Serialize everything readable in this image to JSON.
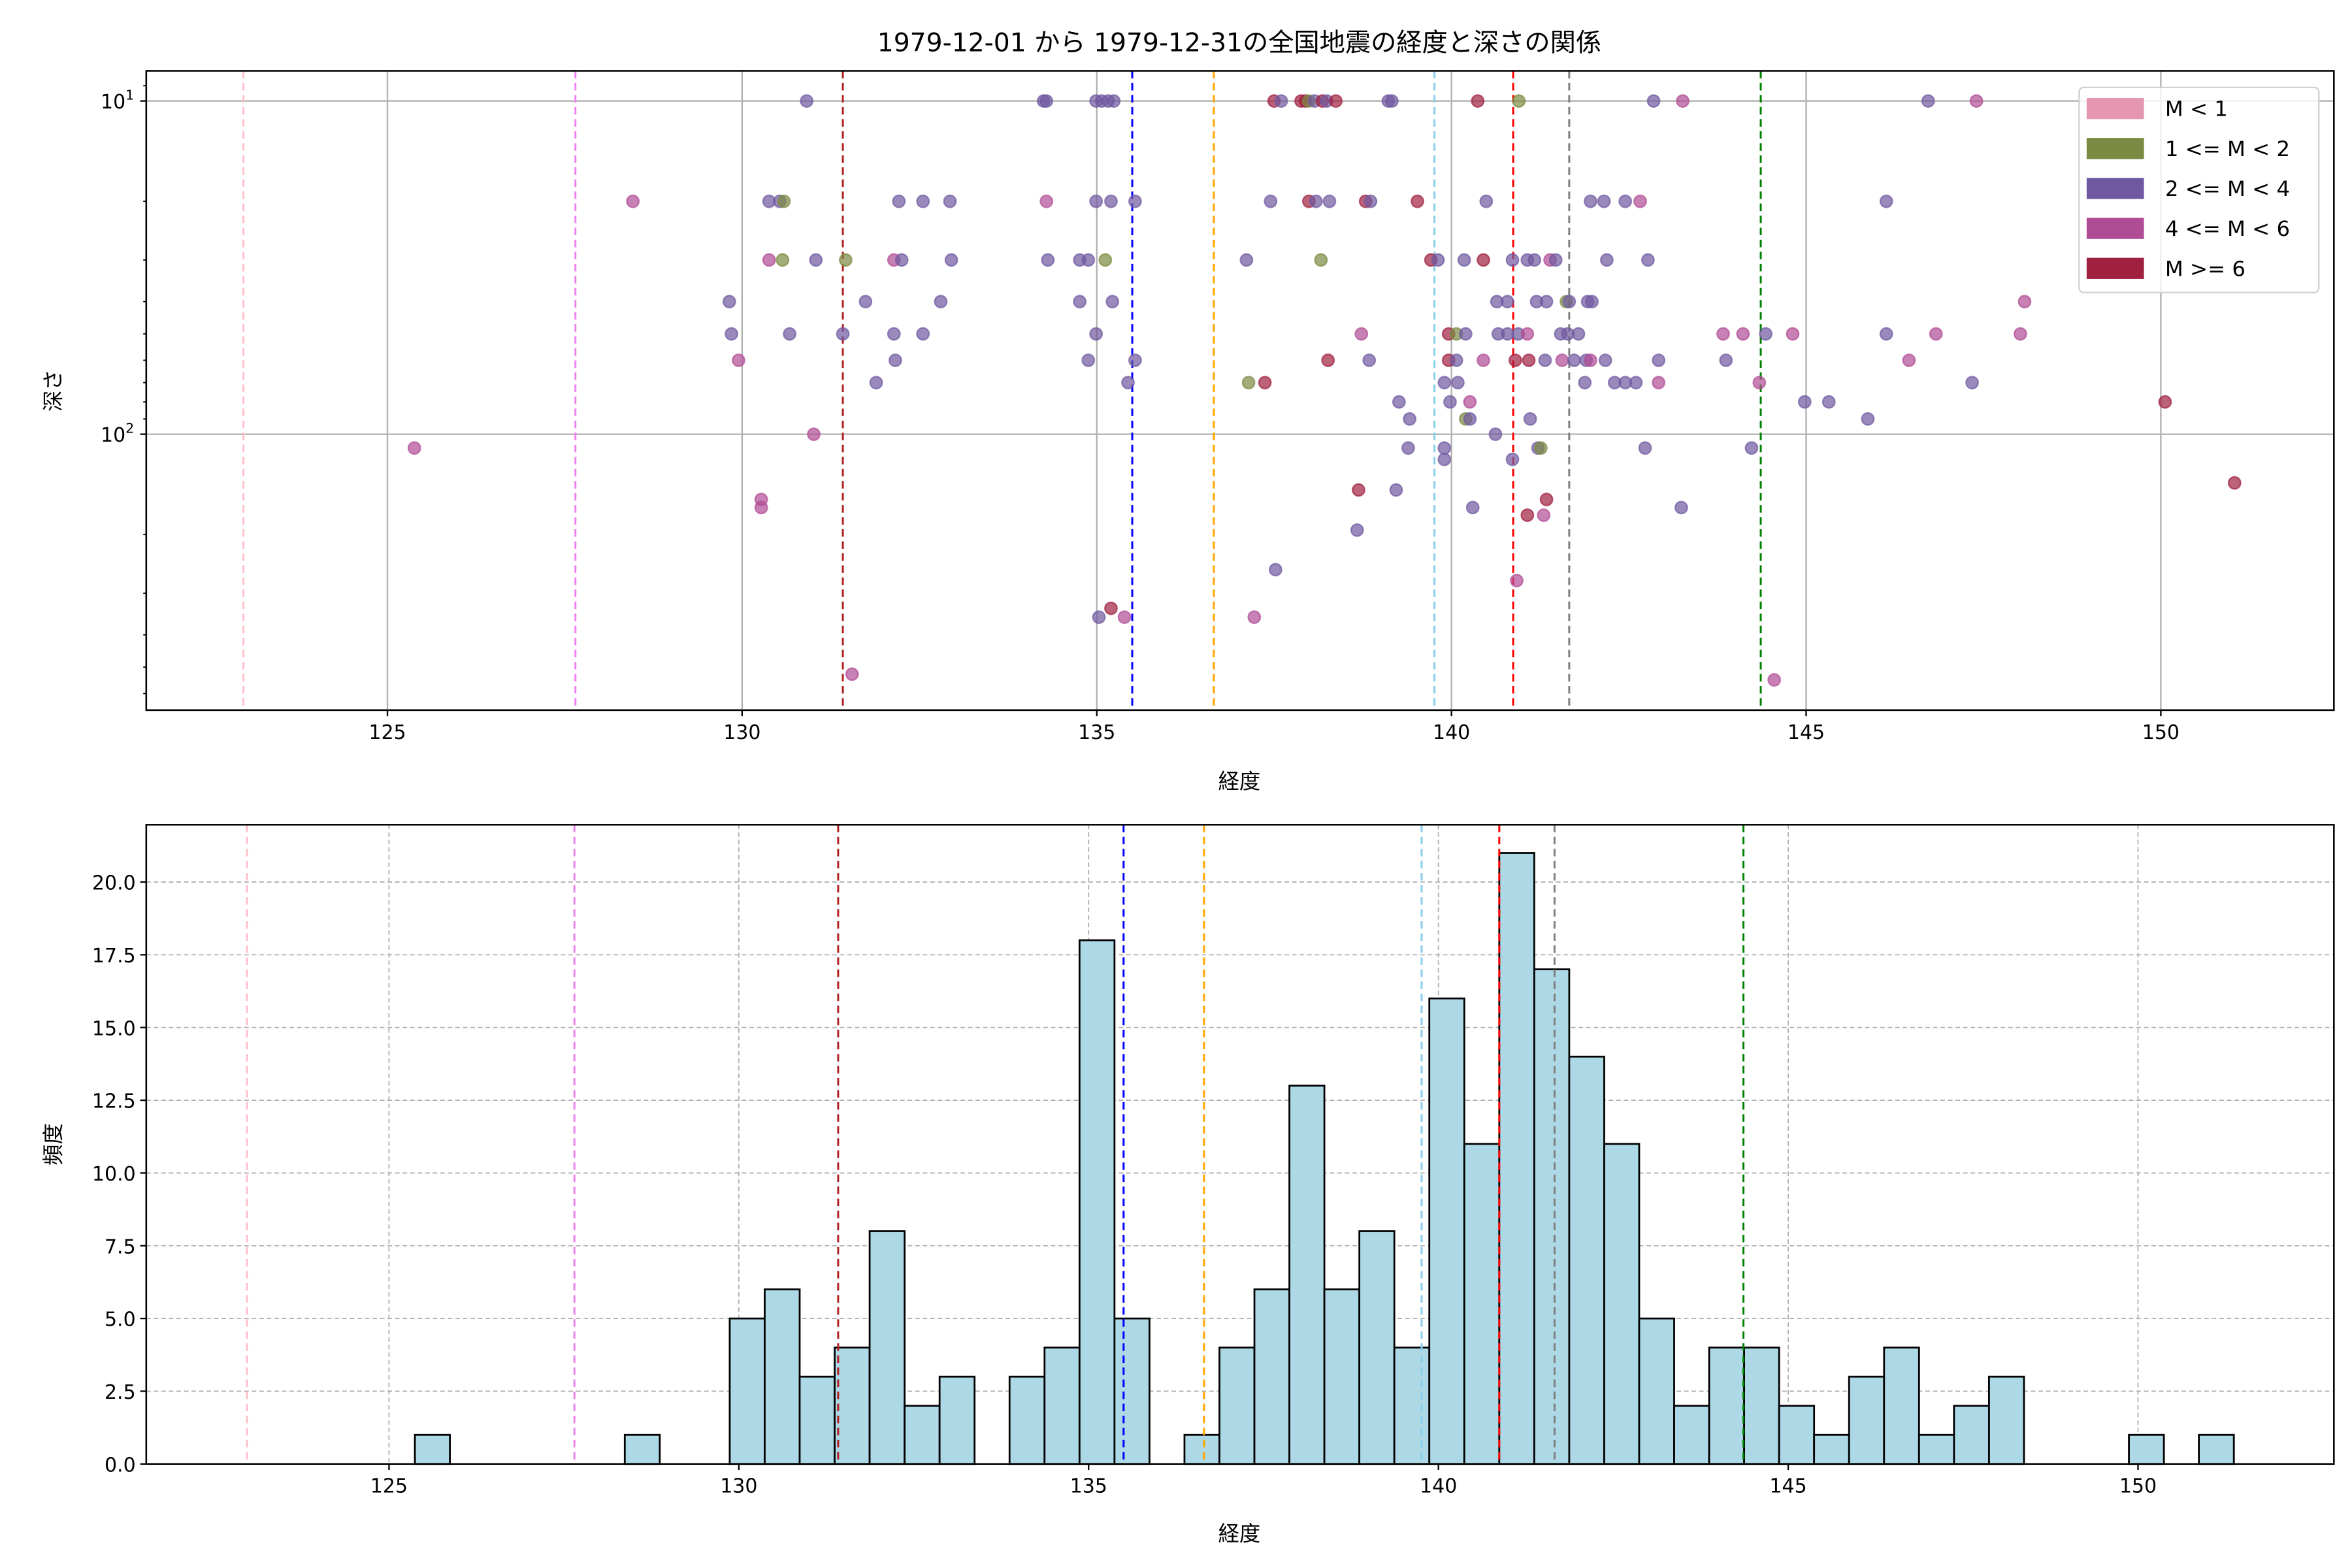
{
  "title": "1979-12-01 から 1979-12-31の全国地震の経度と深さの関係",
  "chart_data": [
    {
      "type": "scatter",
      "xlabel": "経度",
      "ylabel": "深さ",
      "xlim": [
        121.6,
        152.44
      ],
      "ylim": [
        673,
        8.12
      ],
      "yscale": "log",
      "y_inverted": true,
      "xticks": [
        125,
        130,
        135,
        140,
        145,
        150
      ],
      "yticks": [
        {
          "value": 10,
          "base": "10",
          "exp": "1"
        },
        {
          "value": 100,
          "base": "10",
          "exp": "2"
        }
      ],
      "grid": true,
      "legend_placement": "top-right",
      "legend": [
        {
          "label": "M < 1",
          "color": "#e597b1"
        },
        {
          "label": "1 <= M < 2",
          "color": "#7a8a42"
        },
        {
          "label": "2 <= M < 4",
          "color": "#6f58a0"
        },
        {
          "label": "4 <= M < 6",
          "color": "#b04c94"
        },
        {
          "label": "M >= 6",
          "color": "#a02040"
        }
      ],
      "point_fields": [
        "longitude",
        "depth",
        "class_index"
      ],
      "points": [
        [
          130.91,
          10,
          2
        ],
        [
          134.25,
          10,
          2
        ],
        [
          134.29,
          10,
          2
        ],
        [
          134.99,
          10,
          2
        ],
        [
          135.07,
          10,
          2
        ],
        [
          135.16,
          10,
          2
        ],
        [
          135.24,
          10,
          2
        ],
        [
          137.5,
          10,
          4
        ],
        [
          137.6,
          10,
          2
        ],
        [
          137.88,
          10,
          4
        ],
        [
          137.94,
          10,
          4
        ],
        [
          137.99,
          10,
          1
        ],
        [
          138.07,
          10,
          2
        ],
        [
          138.18,
          10,
          4
        ],
        [
          138.24,
          10,
          2
        ],
        [
          138.37,
          10,
          4
        ],
        [
          139.11,
          10,
          2
        ],
        [
          139.16,
          10,
          2
        ],
        [
          140.37,
          10,
          4
        ],
        [
          140.95,
          10,
          1
        ],
        [
          142.85,
          10,
          2
        ],
        [
          143.26,
          10,
          3
        ],
        [
          146.72,
          10,
          2
        ],
        [
          147.4,
          10,
          3
        ],
        [
          128.46,
          20,
          3
        ],
        [
          130.38,
          20,
          2
        ],
        [
          130.53,
          20,
          2
        ],
        [
          130.59,
          20,
          1
        ],
        [
          132.21,
          20,
          2
        ],
        [
          132.55,
          20,
          2
        ],
        [
          132.93,
          20,
          2
        ],
        [
          134.29,
          20,
          3
        ],
        [
          134.99,
          20,
          2
        ],
        [
          135.2,
          20,
          2
        ],
        [
          135.54,
          20,
          2
        ],
        [
          137.45,
          20,
          2
        ],
        [
          137.99,
          20,
          4
        ],
        [
          138.09,
          20,
          2
        ],
        [
          138.28,
          20,
          2
        ],
        [
          138.79,
          20,
          4
        ],
        [
          138.86,
          20,
          2
        ],
        [
          139.52,
          20,
          4
        ],
        [
          140.49,
          20,
          2
        ],
        [
          141.96,
          20,
          2
        ],
        [
          142.15,
          20,
          2
        ],
        [
          142.45,
          20,
          2
        ],
        [
          142.66,
          20,
          3
        ],
        [
          146.13,
          20,
          2
        ],
        [
          130.38,
          30,
          3
        ],
        [
          130.57,
          30,
          1
        ],
        [
          131.04,
          30,
          2
        ],
        [
          131.46,
          30,
          1
        ],
        [
          132.14,
          30,
          3
        ],
        [
          132.25,
          30,
          2
        ],
        [
          132.95,
          30,
          2
        ],
        [
          134.31,
          30,
          2
        ],
        [
          134.76,
          30,
          2
        ],
        [
          134.88,
          30,
          2
        ],
        [
          135.12,
          30,
          1
        ],
        [
          137.11,
          30,
          2
        ],
        [
          138.16,
          30,
          1
        ],
        [
          139.71,
          30,
          4
        ],
        [
          139.81,
          30,
          2
        ],
        [
          140.18,
          30,
          2
        ],
        [
          140.45,
          30,
          4
        ],
        [
          140.86,
          30,
          2
        ],
        [
          141.07,
          30,
          2
        ],
        [
          141.17,
          30,
          2
        ],
        [
          141.39,
          30,
          3
        ],
        [
          141.47,
          30,
          2
        ],
        [
          142.19,
          30,
          2
        ],
        [
          142.77,
          30,
          2
        ],
        [
          129.82,
          40,
          2
        ],
        [
          131.74,
          40,
          2
        ],
        [
          132.8,
          40,
          2
        ],
        [
          134.76,
          40,
          2
        ],
        [
          135.22,
          40,
          2
        ],
        [
          140.64,
          40,
          2
        ],
        [
          140.79,
          40,
          2
        ],
        [
          141.2,
          40,
          2
        ],
        [
          141.34,
          40,
          2
        ],
        [
          141.62,
          40,
          1
        ],
        [
          141.66,
          40,
          2
        ],
        [
          141.92,
          40,
          2
        ],
        [
          141.98,
          40,
          2
        ],
        [
          148.08,
          40,
          3
        ],
        [
          129.85,
          50,
          2
        ],
        [
          130.67,
          50,
          2
        ],
        [
          131.42,
          50,
          2
        ],
        [
          132.14,
          50,
          2
        ],
        [
          132.55,
          50,
          2
        ],
        [
          134.99,
          50,
          2
        ],
        [
          138.73,
          50,
          3
        ],
        [
          139.96,
          50,
          4
        ],
        [
          140.07,
          50,
          1
        ],
        [
          140.2,
          50,
          2
        ],
        [
          140.66,
          50,
          2
        ],
        [
          140.79,
          50,
          2
        ],
        [
          140.94,
          50,
          2
        ],
        [
          141.07,
          50,
          3
        ],
        [
          141.54,
          50,
          2
        ],
        [
          141.64,
          50,
          2
        ],
        [
          141.79,
          50,
          2
        ],
        [
          143.83,
          50,
          3
        ],
        [
          144.11,
          50,
          3
        ],
        [
          144.43,
          50,
          2
        ],
        [
          144.81,
          50,
          3
        ],
        [
          146.13,
          50,
          2
        ],
        [
          146.83,
          50,
          3
        ],
        [
          148.02,
          50,
          3
        ],
        [
          129.95,
          60,
          3
        ],
        [
          132.16,
          60,
          2
        ],
        [
          134.88,
          60,
          2
        ],
        [
          135.54,
          60,
          2
        ],
        [
          138.26,
          60,
          4
        ],
        [
          138.84,
          60,
          2
        ],
        [
          139.96,
          60,
          4
        ],
        [
          140.07,
          60,
          2
        ],
        [
          140.45,
          60,
          3
        ],
        [
          140.9,
          60,
          4
        ],
        [
          141.09,
          60,
          4
        ],
        [
          141.32,
          60,
          2
        ],
        [
          141.56,
          60,
          3
        ],
        [
          141.73,
          60,
          2
        ],
        [
          141.9,
          60,
          2
        ],
        [
          141.96,
          60,
          3
        ],
        [
          142.17,
          60,
          2
        ],
        [
          142.92,
          60,
          2
        ],
        [
          143.87,
          60,
          2
        ],
        [
          146.45,
          60,
          3
        ],
        [
          131.89,
          70,
          2
        ],
        [
          135.44,
          70,
          2
        ],
        [
          137.14,
          70,
          1
        ],
        [
          137.37,
          70,
          4
        ],
        [
          139.9,
          70,
          2
        ],
        [
          140.09,
          70,
          2
        ],
        [
          141.88,
          70,
          2
        ],
        [
          142.3,
          70,
          2
        ],
        [
          142.45,
          70,
          2
        ],
        [
          142.6,
          70,
          2
        ],
        [
          142.92,
          70,
          3
        ],
        [
          144.34,
          70,
          3
        ],
        [
          147.34,
          70,
          2
        ],
        [
          139.26,
          80,
          2
        ],
        [
          139.98,
          80,
          2
        ],
        [
          140.26,
          80,
          3
        ],
        [
          144.98,
          80,
          2
        ],
        [
          145.32,
          80,
          2
        ],
        [
          150.06,
          80,
          4
        ],
        [
          139.41,
          90,
          2
        ],
        [
          140.2,
          90,
          1
        ],
        [
          140.26,
          90,
          2
        ],
        [
          141.11,
          90,
          2
        ],
        [
          145.87,
          90,
          2
        ],
        [
          131.01,
          100,
          3
        ],
        [
          140.62,
          100,
          2
        ],
        [
          125.38,
          110,
          3
        ],
        [
          139.39,
          110,
          2
        ],
        [
          139.9,
          110,
          2
        ],
        [
          141.22,
          110,
          2
        ],
        [
          141.26,
          110,
          1
        ],
        [
          142.73,
          110,
          2
        ],
        [
          144.23,
          110,
          2
        ],
        [
          139.9,
          119,
          2
        ],
        [
          140.86,
          119,
          2
        ],
        [
          138.69,
          147,
          4
        ],
        [
          139.22,
          147,
          2
        ],
        [
          151.04,
          140,
          4
        ],
        [
          130.27,
          157,
          3
        ],
        [
          141.34,
          157,
          4
        ],
        [
          130.27,
          166,
          3
        ],
        [
          140.3,
          166,
          2
        ],
        [
          143.24,
          166,
          2
        ],
        [
          141.07,
          175,
          4
        ],
        [
          141.3,
          175,
          3
        ],
        [
          138.67,
          194,
          2
        ],
        [
          137.52,
          255,
          2
        ],
        [
          140.92,
          275,
          3
        ],
        [
          135.2,
          333,
          4
        ],
        [
          135.03,
          354,
          2
        ],
        [
          135.39,
          354,
          3
        ],
        [
          137.22,
          354,
          3
        ],
        [
          131.55,
          525,
          3
        ],
        [
          144.55,
          546,
          3
        ]
      ]
    },
    {
      "type": "bar",
      "subtype": "histogram",
      "xlabel": "経度",
      "ylabel": "頻度",
      "xlim": [
        121.53,
        152.8
      ],
      "ylim": [
        0,
        21.97
      ],
      "xticks": [
        125,
        130,
        135,
        140,
        145,
        150
      ],
      "yticks": [
        "0.0",
        "2.5",
        "5.0",
        "7.5",
        "10.0",
        "12.5",
        "15.0",
        "17.5",
        "20.0"
      ],
      "grid": true,
      "bin_start": 125.37,
      "bin_width": 0.5,
      "counts": [
        1,
        0,
        0,
        0,
        0,
        0,
        1,
        0,
        0,
        5,
        6,
        3,
        4,
        8,
        2,
        3,
        0,
        3,
        4,
        18,
        5,
        0,
        1,
        4,
        6,
        13,
        6,
        8,
        4,
        16,
        11,
        21,
        17,
        14,
        11,
        5,
        2,
        4,
        4,
        2,
        1,
        3,
        4,
        1,
        2,
        3,
        0,
        0,
        0,
        1,
        0,
        1
      ],
      "bar_color": "#add8e6"
    }
  ],
  "reference_lines": [
    {
      "longitude": 122.97,
      "color": "#ffc0cb"
    },
    {
      "longitude": 127.65,
      "color": "#ee82ee"
    },
    {
      "longitude": 131.42,
      "color": "#b22222"
    },
    {
      "longitude": 135.5,
      "color": "#0000ff"
    },
    {
      "longitude": 136.65,
      "color": "#ffa500"
    },
    {
      "longitude": 139.76,
      "color": "#87ceeb"
    },
    {
      "longitude": 140.87,
      "color": "#ff0000"
    },
    {
      "longitude": 141.66,
      "color": "#808080"
    },
    {
      "longitude": 144.36,
      "color": "#008000"
    }
  ]
}
